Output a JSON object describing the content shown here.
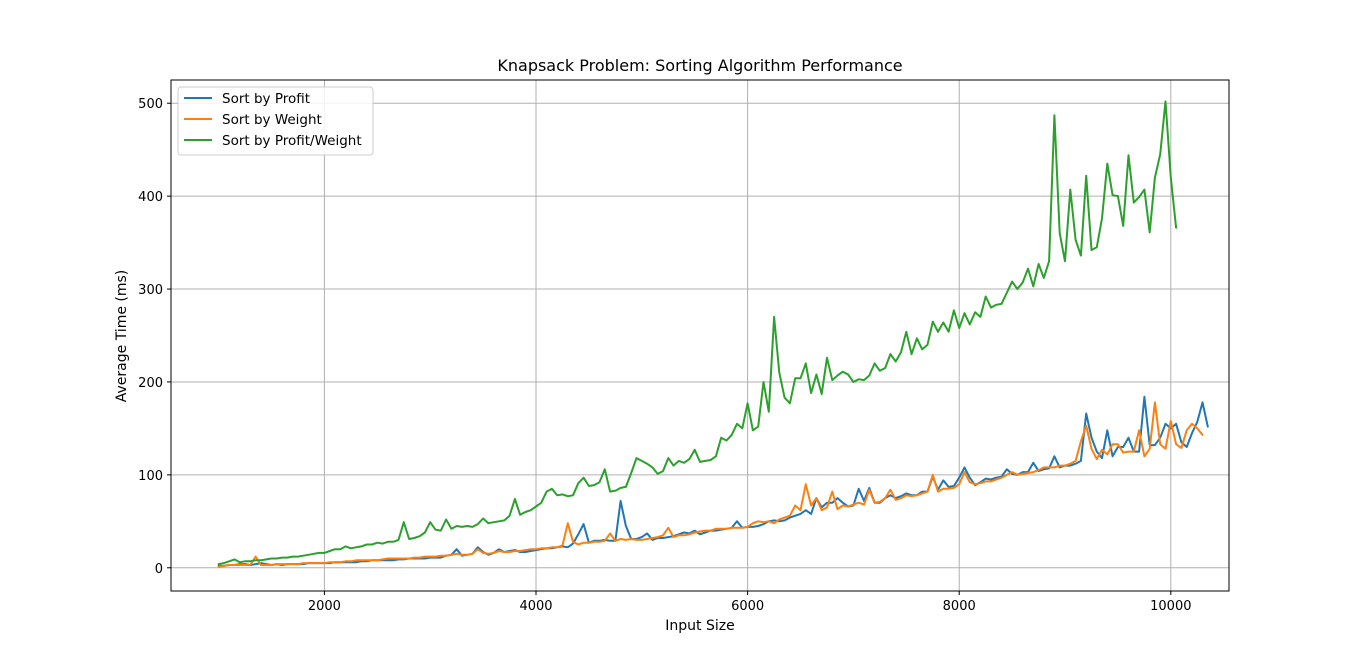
{
  "chart_data": {
    "type": "line",
    "title": "Knapsack Problem: Sorting Algorithm Performance",
    "xlabel": "Input Size",
    "ylabel": "Average Time (ms)",
    "xlim": [
      550,
      10550
    ],
    "ylim": [
      -25,
      525
    ],
    "xticks": [
      2000,
      4000,
      6000,
      8000,
      10000
    ],
    "yticks": [
      0,
      100,
      200,
      300,
      400,
      500
    ],
    "grid": true,
    "legend_position": "upper-left",
    "x_start": 1000,
    "x_step": 50,
    "series": [
      {
        "name": "Sort by Profit",
        "color": "#1f77b4",
        "values": [
          2,
          2,
          3,
          3,
          4,
          4,
          3,
          4,
          5,
          4,
          3,
          4,
          3,
          4,
          4,
          4,
          4,
          5,
          5,
          5,
          5,
          5,
          6,
          6,
          6,
          6,
          6,
          7,
          7,
          8,
          8,
          8,
          8,
          8,
          9,
          9,
          10,
          10,
          10,
          10,
          11,
          11,
          11,
          13,
          14,
          20,
          13,
          14,
          15,
          22,
          17,
          14,
          16,
          20,
          17,
          18,
          19,
          17,
          17,
          18,
          19,
          20,
          21,
          21,
          22,
          23,
          22,
          26,
          36,
          47,
          27,
          29,
          29,
          30,
          29,
          29,
          72,
          45,
          31,
          31,
          33,
          37,
          30,
          32,
          32,
          33,
          34,
          36,
          38,
          37,
          40,
          36,
          38,
          40,
          40,
          41,
          42,
          43,
          50,
          43,
          44,
          44,
          45,
          47,
          50,
          51,
          50,
          51,
          54,
          56,
          58,
          62,
          58,
          75,
          65,
          70,
          70,
          75,
          70,
          66,
          67,
          85,
          72,
          86,
          70,
          70,
          75,
          78,
          75,
          77,
          80,
          78,
          78,
          82,
          82,
          98,
          84,
          94,
          87,
          88,
          97,
          108,
          97,
          89,
          92,
          96,
          95,
          97,
          98,
          106,
          101,
          100,
          103,
          103,
          113,
          104,
          106,
          107,
          120,
          108,
          110,
          110,
          112,
          115,
          166,
          140,
          125,
          118,
          148,
          120,
          130,
          130,
          140,
          125,
          125,
          184,
          132,
          132,
          140,
          155,
          150,
          155,
          135,
          130,
          145,
          157,
          178,
          152
        ]
      },
      {
        "name": "Sort by Weight",
        "color": "#ff7f0e",
        "values": [
          1,
          2,
          3,
          3,
          3,
          3,
          3,
          12,
          3,
          3,
          3,
          4,
          4,
          4,
          4,
          4,
          5,
          5,
          5,
          5,
          5,
          6,
          6,
          6,
          7,
          7,
          8,
          8,
          8,
          8,
          8,
          9,
          10,
          10,
          10,
          10,
          10,
          11,
          11,
          12,
          12,
          12,
          13,
          13,
          14,
          15,
          14,
          14,
          15,
          20,
          16,
          15,
          16,
          18,
          17,
          17,
          18,
          18,
          19,
          20,
          20,
          21,
          21,
          22,
          22,
          24,
          48,
          28,
          25,
          27,
          27,
          28,
          28,
          29,
          37,
          29,
          31,
          30,
          31,
          30,
          30,
          31,
          32,
          33,
          35,
          43,
          33,
          35,
          35,
          36,
          38,
          39,
          40,
          40,
          42,
          42,
          42,
          43,
          43,
          43,
          44,
          48,
          50,
          49,
          50,
          48,
          52,
          54,
          56,
          67,
          62,
          90,
          67,
          75,
          62,
          65,
          82,
          63,
          67,
          66,
          68,
          70,
          68,
          84,
          70,
          71,
          75,
          84,
          73,
          75,
          78,
          77,
          78,
          80,
          82,
          100,
          82,
          85,
          85,
          86,
          90,
          103,
          92,
          90,
          91,
          93,
          93,
          95,
          97,
          100,
          103,
          100,
          101,
          102,
          103,
          105,
          108,
          108,
          108,
          110,
          110,
          112,
          115,
          136,
          153,
          128,
          117,
          127,
          122,
          133,
          133,
          124,
          125,
          125,
          148,
          120,
          128,
          178,
          133,
          128,
          158,
          133,
          129,
          148,
          155,
          150,
          143
        ]
      },
      {
        "name": "Sort by Profit/Weight",
        "color": "#2ca02c",
        "values": [
          4,
          5,
          7,
          9,
          6,
          7,
          7,
          8,
          8,
          9,
          10,
          10,
          11,
          11,
          12,
          12,
          13,
          14,
          15,
          16,
          16,
          18,
          20,
          20,
          23,
          21,
          22,
          23,
          25,
          25,
          27,
          26,
          28,
          28,
          30,
          49,
          31,
          32,
          34,
          38,
          49,
          41,
          40,
          52,
          42,
          45,
          44,
          45,
          44,
          47,
          53,
          48,
          49,
          50,
          51,
          56,
          74,
          57,
          60,
          62,
          66,
          70,
          82,
          85,
          78,
          79,
          77,
          78,
          91,
          97,
          88,
          89,
          92,
          106,
          82,
          83,
          86,
          87,
          102,
          118,
          115,
          112,
          108,
          101,
          104,
          118,
          110,
          115,
          113,
          117,
          127,
          114,
          115,
          116,
          120,
          140,
          137,
          143,
          155,
          150,
          177,
          148,
          152,
          200,
          168,
          270,
          210,
          183,
          177,
          204,
          204,
          220,
          188,
          208,
          187,
          226,
          202,
          207,
          211,
          208,
          200,
          203,
          202,
          207,
          220,
          212,
          215,
          230,
          222,
          232,
          254,
          230,
          247,
          235,
          240,
          265,
          254,
          264,
          254,
          277,
          258,
          274,
          262,
          275,
          270,
          292,
          280,
          283,
          284,
          296,
          308,
          300,
          307,
          322,
          303,
          327,
          312,
          330,
          487,
          360,
          330,
          407,
          353,
          336,
          422,
          342,
          345,
          376,
          435,
          401,
          400,
          368,
          444,
          393,
          399,
          407,
          361,
          420,
          445,
          502,
          420,
          366
        ]
      }
    ]
  }
}
